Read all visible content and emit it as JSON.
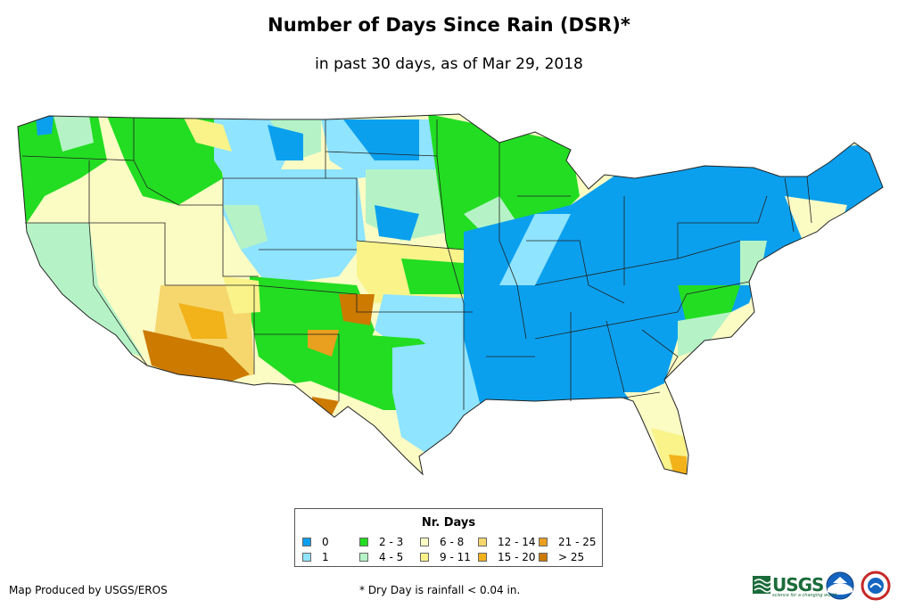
{
  "title": "Number of Days Since Rain (DSR)*",
  "subtitle": "in past 30 days, as of Mar 29, 2018",
  "legend": {
    "title": "Nr. Days",
    "items": [
      {
        "label": "0",
        "color": "#0ba0ee"
      },
      {
        "label": "1",
        "color": "#8fe4ff"
      },
      {
        "label": "2 - 3",
        "color": "#22dd22"
      },
      {
        "label": "4 - 5",
        "color": "#b5f3c6"
      },
      {
        "label": "6 - 8",
        "color": "#fbfbc4"
      },
      {
        "label": "9 - 11",
        "color": "#f9f38a"
      },
      {
        "label": "12 - 14",
        "color": "#f5d76e"
      },
      {
        "label": "15 - 20",
        "color": "#f2b21a"
      },
      {
        "label": "21 - 25",
        "color": "#e8a01e"
      },
      {
        "label": "> 25",
        "color": "#cc7a00"
      }
    ]
  },
  "footer": {
    "producer": "Map Produced by USGS/EROS",
    "note": "* Dry Day is rainfall < 0.04 in."
  },
  "logos": {
    "usgs": "USGS",
    "usgs_tagline": "science for a changing world",
    "noaa_icon": "noaa-logo-icon",
    "nws_icon": "nws-logo-icon"
  }
}
